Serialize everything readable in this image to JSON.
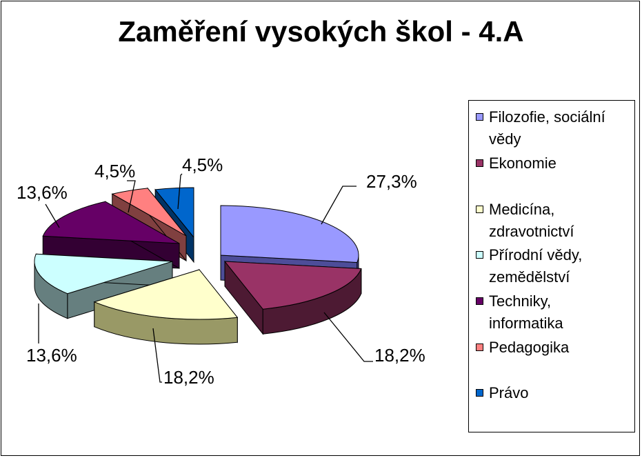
{
  "chart_data": {
    "type": "pie",
    "title": "Zaměření vysokých škol - 4.A",
    "legend_position": "right",
    "slices": [
      {
        "name": "Filozofie, sociální vědy",
        "value": 27.3,
        "label": "27,3%",
        "color": "#9999ff",
        "side": "#4d4d99",
        "legend_lines": [
          "Filozofie, sociální",
          "vědy"
        ]
      },
      {
        "name": "Ekonomie",
        "value": 18.2,
        "label": "18,2%",
        "color": "#993366",
        "side": "#4d1a33",
        "legend_lines": [
          "Ekonomie"
        ]
      },
      {
        "name": "Medicína, zdravotnictví",
        "value": 18.2,
        "label": "18,2%",
        "color": "#ffffcc",
        "side": "#999966",
        "legend_lines": [
          "Medicína,",
          "zdravotnictví"
        ]
      },
      {
        "name": "Přírodní vědy, zemědělství",
        "value": 13.6,
        "label": "13,6%",
        "color": "#ccffff",
        "side": "#667f7f",
        "legend_lines": [
          "Přírodní vědy,",
          "zemědělství"
        ]
      },
      {
        "name": "Techniky, informatika",
        "value": 13.6,
        "label": "13,6%",
        "color": "#660066",
        "side": "#330033",
        "legend_lines": [
          "Techniky,",
          "informatika"
        ]
      },
      {
        "name": "Pedagogika",
        "value": 4.5,
        "label": "4,5%",
        "color": "#ff8080",
        "side": "#804040",
        "legend_lines": [
          "Pedagogika"
        ]
      },
      {
        "name": "Právo",
        "value": 4.5,
        "label": "4,5%",
        "color": "#0066cc",
        "side": "#003366",
        "legend_lines": [
          "Právo"
        ]
      }
    ]
  }
}
